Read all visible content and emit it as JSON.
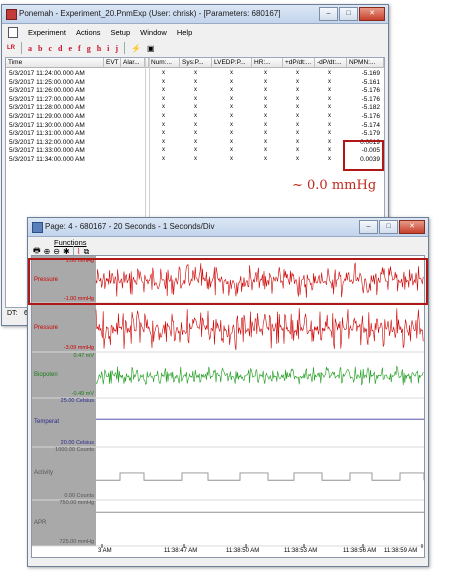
{
  "main_window": {
    "title": "Ponemah - Experiment_20.PnmExp (User: chrisk) - [Parameters: 680167]",
    "controls": [
      "–",
      "□",
      "✕"
    ],
    "menu": [
      "Experiment",
      "Actions",
      "Setup",
      "Window",
      "Help"
    ],
    "toolbar_letters": [
      "a",
      "b",
      "c",
      "d",
      "e",
      "f",
      "g",
      "h",
      "i",
      "j"
    ],
    "columns": [
      "Time",
      "EVT",
      "Alar...",
      "Num:...",
      "Sys:P...",
      "LVEDP:P...",
      "HR:...",
      "+dP/dt:...",
      "-dP/dt:...",
      "NPMN:..."
    ],
    "rows": [
      {
        "time": "5/3/2017 11:24:00.000 AM",
        "npmn": "-5.169"
      },
      {
        "time": "5/3/2017 11:25:00.000 AM",
        "npmn": "-5.161"
      },
      {
        "time": "5/3/2017 11:26:00.000 AM",
        "npmn": "-5.176"
      },
      {
        "time": "5/3/2017 11:27:00.000 AM",
        "npmn": "-5.176"
      },
      {
        "time": "5/3/2017 11:28:00.000 AM",
        "npmn": "-5.182"
      },
      {
        "time": "5/3/2017 11:29:00.000 AM",
        "npmn": "-5.176"
      },
      {
        "time": "5/3/2017 11:30:00.000 AM",
        "npmn": "-5.174"
      },
      {
        "time": "5/3/2017 11:31:00.000 AM",
        "npmn": "-5.179"
      },
      {
        "time": "5/3/2017 11:32:00.000 AM",
        "npmn": "0.0019"
      },
      {
        "time": "5/3/2017 11:33:00.000 AM",
        "npmn": "-0.005"
      },
      {
        "time": "5/3/2017 11:34:00.000 AM",
        "npmn": "0.0039"
      }
    ],
    "dt_label": "DT:",
    "dt_value": "6"
  },
  "annotation": "~ 0.0 mmHg",
  "page_window": {
    "title": "Page: 4 - 680167 - 20 Seconds - 1 Seconds/Div",
    "functions_label": "Functions",
    "channels": [
      {
        "name": "Pressure",
        "top_scale": "1.00 mmHg",
        "bottom_scale": "-1.00 mmHg",
        "color": "#cc0000"
      },
      {
        "name": "Pressure",
        "top_scale": "",
        "bottom_scale": "-3.09 mmHg",
        "color": "#cc0000"
      },
      {
        "name": "Biopoten",
        "top_scale": "0.47 mV",
        "bottom_scale": "-0.49 mV",
        "color": "#1a9a1a"
      },
      {
        "name": "Temperat",
        "top_scale": "25.00 Celsius",
        "bottom_scale": "20.00 Celsius",
        "color": "#3a3aa8"
      },
      {
        "name": "Activity",
        "top_scale": "1000.00 Counts",
        "bottom_scale": "0.00 Counts",
        "color": "#909090"
      },
      {
        "name": "APR",
        "top_scale": "750.00 mmHg",
        "bottom_scale": "725.00 mmHg",
        "color": "#909090"
      }
    ],
    "x_ticks": [
      "3 AM",
      "11:38:47 AM",
      "11:38:50 AM",
      "11:38:53 AM",
      "11:38:56 AM",
      "11:38:59 AM"
    ]
  },
  "icons": [
    "app-icon",
    "zoom-in-icon",
    "zoom-out-icon",
    "print-icon",
    "crosshair-icon",
    "event-icon",
    "lightning-icon",
    "save-icon"
  ]
}
